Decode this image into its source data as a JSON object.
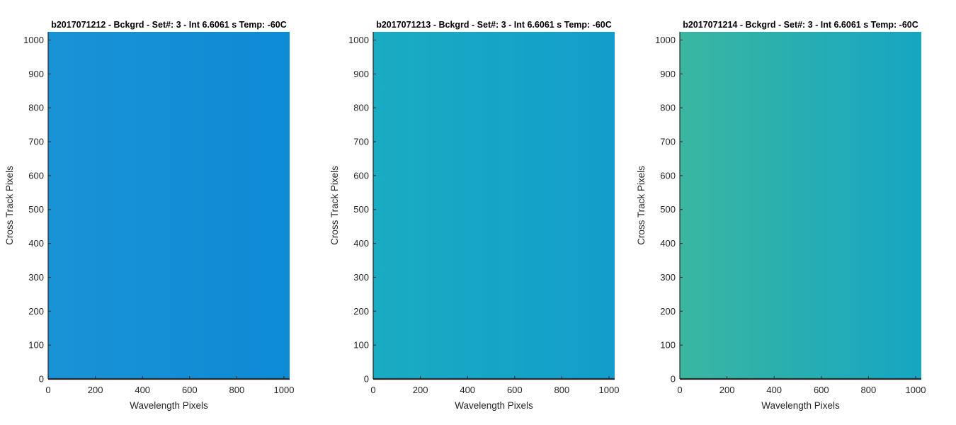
{
  "colors": {
    "axis": "#262626",
    "plot_edge": "#2a2a2a"
  },
  "chart_data": [
    {
      "type": "heatmap",
      "title": "b2017071212 - Bckgrd - Set#: 3 - Int 6.6061 s Temp: -60C",
      "xlabel": "Wavelength Pixels",
      "ylabel": "Cross Track Pixels",
      "xlim": [
        0,
        1024
      ],
      "ylim": [
        0,
        1024
      ],
      "xticks": [
        0,
        200,
        400,
        600,
        800,
        1000
      ],
      "yticks": [
        0,
        100,
        200,
        300,
        400,
        500,
        600,
        700,
        800,
        900,
        1000
      ],
      "colormap_left": "#1a92d6",
      "colormap_right": "#0d8bd5",
      "noise_color": "#27a2c8"
    },
    {
      "type": "heatmap",
      "title": "b2017071213 - Bckgrd - Set#: 3 - Int 6.6061 s Temp: -60C",
      "xlabel": "Wavelength Pixels",
      "ylabel": "Cross Track Pixels",
      "xlim": [
        0,
        1024
      ],
      "ylim": [
        0,
        1024
      ],
      "xticks": [
        0,
        200,
        400,
        600,
        800,
        1000
      ],
      "yticks": [
        0,
        100,
        200,
        300,
        400,
        500,
        600,
        700,
        800,
        900,
        1000
      ],
      "colormap_left": "#1aacc2",
      "colormap_right": "#129dcb",
      "noise_color": "#3ab3b0"
    },
    {
      "type": "heatmap",
      "title": "b2017071214 - Bckgrd - Set#: 3 - Int 6.6061 s Temp: -60C",
      "xlabel": "Wavelength Pixels",
      "ylabel": "Cross Track Pixels",
      "xlim": [
        0,
        1024
      ],
      "ylim": [
        0,
        1024
      ],
      "xticks": [
        0,
        200,
        400,
        600,
        800,
        1000
      ],
      "yticks": [
        0,
        100,
        200,
        300,
        400,
        500,
        600,
        700,
        800,
        900,
        1000
      ],
      "colormap_left": "#3ab6a0",
      "colormap_right": "#16a6c3",
      "noise_color": "#6cc08a"
    }
  ]
}
